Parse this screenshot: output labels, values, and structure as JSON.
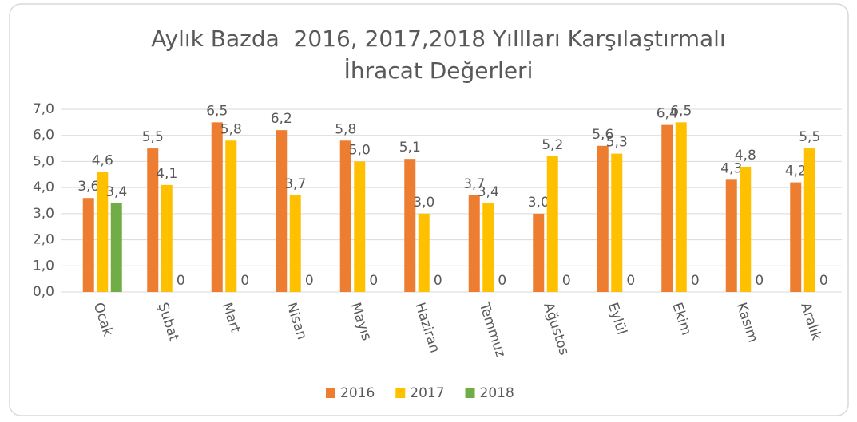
{
  "chart_data": {
    "type": "bar",
    "title": [
      "Aylık Bazda  2016, 2017,2018 Yıllları Karşılaştırmalı",
      "İhracat Değerleri"
    ],
    "categories": [
      "Ocak",
      "Şubat",
      "Mart",
      "Nisan",
      "Mayıs",
      "Haziran",
      "Temmuz",
      "Ağustos",
      "Eylül",
      "Ekim",
      "Kasım",
      "Aralık"
    ],
    "series": [
      {
        "name": "2016",
        "color": "#ED7D31",
        "values": [
          3.6,
          5.5,
          6.5,
          6.2,
          5.8,
          5.1,
          3.7,
          3.0,
          5.6,
          6.4,
          4.3,
          4.2
        ],
        "value_labels": [
          "3,6",
          "5,5",
          "6,5",
          "6,2",
          "5,8",
          "5,1",
          "3,7",
          "3,0",
          "5,6",
          "6,4",
          "4,3",
          "4,2"
        ]
      },
      {
        "name": "2017",
        "color": "#FFC000",
        "values": [
          4.6,
          4.1,
          5.8,
          3.7,
          5.0,
          3.0,
          3.4,
          5.2,
          5.3,
          6.5,
          4.8,
          5.5
        ],
        "value_labels": [
          "4,6",
          "4,1",
          "5,8",
          "3,7",
          "5,0",
          "3,0",
          "3,4",
          "5,2",
          "5,3",
          "6,5",
          "4,8",
          "5,5"
        ]
      },
      {
        "name": "2018",
        "color": "#70AD47",
        "values": [
          3.4,
          0,
          0,
          0,
          0,
          0,
          0,
          0,
          0,
          0,
          0,
          0
        ],
        "value_labels": [
          "3,4",
          "0",
          "0",
          "0",
          "0",
          "0",
          "0",
          "0",
          "0",
          "0",
          "0",
          "0"
        ]
      }
    ],
    "ylim": [
      0,
      7
    ],
    "yticks": [
      {
        "value": 0,
        "label": "0,0"
      },
      {
        "value": 1,
        "label": "1,0"
      },
      {
        "value": 2,
        "label": "2,0"
      },
      {
        "value": 3,
        "label": "3,0"
      },
      {
        "value": 4,
        "label": "4,0"
      },
      {
        "value": 5,
        "label": "5,0"
      },
      {
        "value": 6,
        "label": "6,0"
      },
      {
        "value": 7,
        "label": "7,0"
      }
    ],
    "grid": true,
    "legend": "bottom"
  }
}
